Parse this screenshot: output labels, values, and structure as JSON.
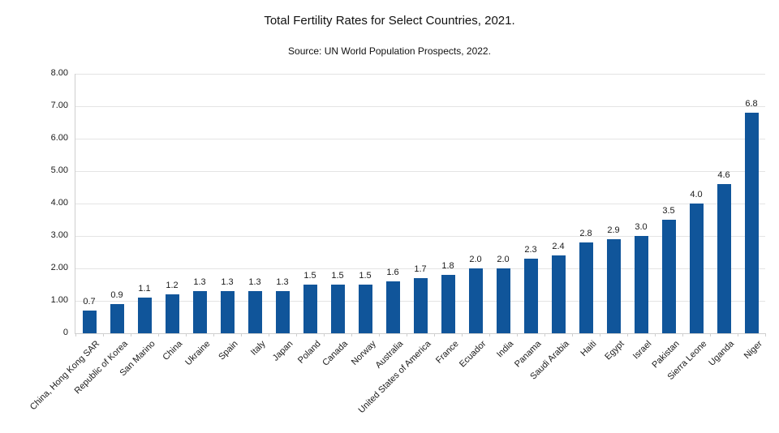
{
  "chart_data": {
    "type": "bar",
    "title": "Total Fertility Rates for Select Countries, 2021.",
    "subtitle": "Source: UN World Population Prospects, 2022.",
    "categories": [
      "China, Hong Kong SAR",
      "Republic of Korea",
      "San Marino",
      "China",
      "Ukraine",
      "Spain",
      "Italy",
      "Japan",
      "Poland",
      "Canada",
      "Norway",
      "Australia",
      "United States of America",
      "France",
      "Ecuador",
      "India",
      "Panama",
      "Saudi Arabia",
      "Haiti",
      "Egypt",
      "Israel",
      "Pakistan",
      "Sierra Leone",
      "Uganda",
      "Niger"
    ],
    "values": [
      0.7,
      0.9,
      1.1,
      1.2,
      1.3,
      1.3,
      1.3,
      1.3,
      1.5,
      1.5,
      1.5,
      1.6,
      1.7,
      1.8,
      2.0,
      2.0,
      2.3,
      2.4,
      2.8,
      2.9,
      3.0,
      3.5,
      4.0,
      4.6,
      6.8
    ],
    "value_labels": [
      "0.7",
      "0.9",
      "1.1",
      "1.2",
      "1.3",
      "1.3",
      "1.3",
      "1.3",
      "1.5",
      "1.5",
      "1.5",
      "1.6",
      "1.7",
      "1.8",
      "2.0",
      "2.0",
      "2.3",
      "2.4",
      "2.8",
      "2.9",
      "3.0",
      "3.5",
      "4.0",
      "4.6",
      "6.8"
    ],
    "y_tick_labels": [
      "8.00",
      "7.00",
      "6.00",
      "5.00",
      "4.00",
      "3.00",
      "2.00",
      "1.00",
      "0"
    ],
    "ylim": [
      0,
      8
    ],
    "xlabel": "",
    "ylabel": "",
    "grid": "horizontal",
    "legend": "none",
    "bar_color": "#10559a",
    "gridline_color": "#e4e4e4",
    "axis_color": "#cfcfcf",
    "text_color": "#1a1a1a"
  }
}
